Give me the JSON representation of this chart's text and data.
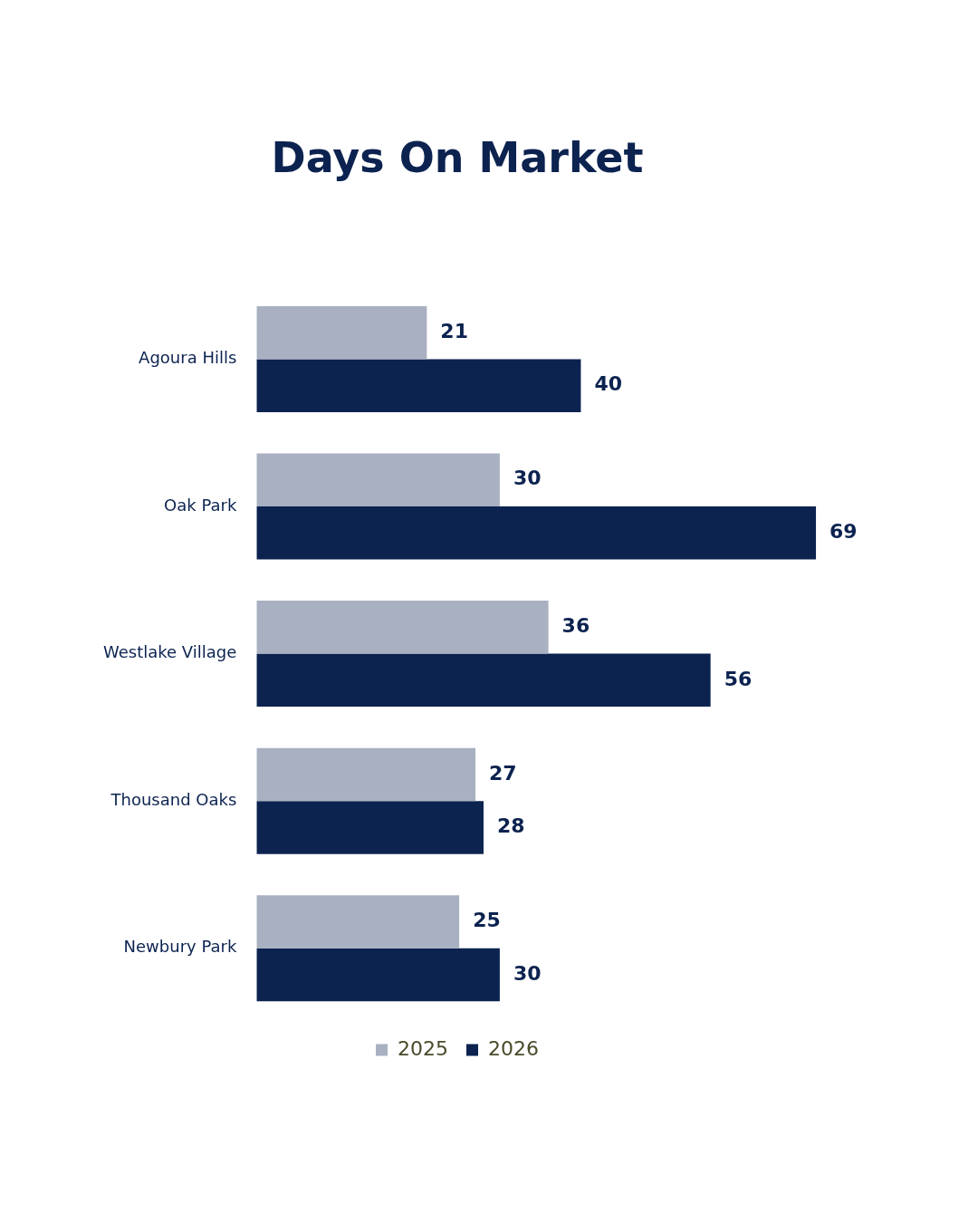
{
  "chart_data": {
    "type": "bar",
    "title": "Days On Market",
    "orientation": "horizontal",
    "categories": [
      "Agoura Hills",
      "Oak Park",
      "Westlake Village",
      "Thousand Oaks",
      "Newbury Park"
    ],
    "series": [
      {
        "name": "2025",
        "color": "#a9b0c1",
        "values": [
          21,
          30,
          36,
          27,
          25
        ]
      },
      {
        "name": "2026",
        "color": "#0c2350",
        "values": [
          40,
          69,
          56,
          28,
          30
        ]
      }
    ],
    "data_labels": true,
    "legend": "bottom"
  }
}
